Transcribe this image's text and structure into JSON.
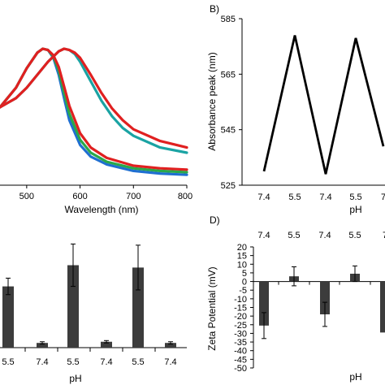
{
  "chart_data": [
    {
      "panel": "A",
      "panel_label": "",
      "type": "line",
      "xlabel": "Wavelength (nm)",
      "ylabel": "",
      "xlim": [
        450,
        800
      ],
      "ylim": [
        0,
        1.1
      ],
      "x_ticks": [
        "500",
        "600",
        "700",
        "800"
      ],
      "x_tick_values": [
        500,
        600,
        700,
        800
      ],
      "series": [
        {
          "color": "#1f6fd1",
          "x": [
            450,
            480,
            500,
            520,
            530,
            540,
            550,
            560,
            570,
            580,
            600,
            620,
            650,
            700,
            750,
            800
          ],
          "y": [
            0.55,
            0.7,
            0.85,
            0.97,
            1.0,
            0.99,
            0.93,
            0.8,
            0.62,
            0.45,
            0.26,
            0.17,
            0.11,
            0.06,
            0.04,
            0.03
          ]
        },
        {
          "color": "#2aa84a",
          "x": [
            450,
            480,
            500,
            520,
            530,
            540,
            550,
            560,
            570,
            580,
            600,
            620,
            650,
            700,
            750,
            800
          ],
          "y": [
            0.55,
            0.7,
            0.85,
            0.97,
            1.0,
            0.99,
            0.94,
            0.83,
            0.66,
            0.5,
            0.3,
            0.2,
            0.13,
            0.08,
            0.06,
            0.05
          ]
        },
        {
          "color": "#e02020",
          "x": [
            450,
            480,
            500,
            520,
            530,
            540,
            550,
            560,
            570,
            580,
            600,
            620,
            650,
            700,
            750,
            800
          ],
          "y": [
            0.55,
            0.7,
            0.85,
            0.97,
            1.0,
            0.99,
            0.95,
            0.86,
            0.71,
            0.56,
            0.35,
            0.24,
            0.16,
            0.1,
            0.08,
            0.07
          ]
        },
        {
          "color": "#1aa3a3",
          "x": [
            450,
            480,
            500,
            520,
            540,
            560,
            570,
            580,
            590,
            600,
            620,
            640,
            660,
            680,
            700,
            750,
            800
          ],
          "y": [
            0.55,
            0.62,
            0.7,
            0.8,
            0.9,
            0.98,
            1.0,
            0.99,
            0.96,
            0.9,
            0.75,
            0.6,
            0.48,
            0.39,
            0.33,
            0.24,
            0.2
          ]
        },
        {
          "color": "#e02020",
          "x": [
            450,
            480,
            500,
            520,
            540,
            560,
            570,
            580,
            590,
            600,
            620,
            640,
            660,
            680,
            700,
            750,
            800
          ],
          "y": [
            0.55,
            0.62,
            0.7,
            0.8,
            0.9,
            0.98,
            1.0,
            0.99,
            0.97,
            0.93,
            0.8,
            0.66,
            0.54,
            0.45,
            0.38,
            0.29,
            0.24
          ]
        }
      ]
    },
    {
      "panel": "B",
      "panel_label": "B)",
      "type": "line",
      "xlabel": "pH",
      "ylabel": "Absorbance peak (nm)",
      "ylim": [
        525,
        585
      ],
      "y_ticks": [
        "525",
        "545",
        "565",
        "585"
      ],
      "y_tick_values": [
        525,
        545,
        565,
        585
      ],
      "categories": [
        "7.4",
        "5.5",
        "7.4",
        "5.5",
        "7"
      ],
      "series": [
        {
          "color": "#000000",
          "values": [
            530,
            579,
            529,
            578,
            539
          ]
        }
      ]
    },
    {
      "panel": "C",
      "panel_label": "",
      "type": "bar",
      "xlabel": "pH",
      "ylabel": "",
      "ylim": [
        0,
        1.0
      ],
      "categories": [
        "5.5",
        "7.4",
        "5.5",
        "7.4",
        "5.5",
        "7.4"
      ],
      "values": [
        0.52,
        0.04,
        0.7,
        0.05,
        0.68,
        0.04
      ],
      "errors": [
        0.07,
        0.01,
        0.18,
        0.01,
        0.19,
        0.01
      ],
      "bar_color": "#3c3c3c"
    },
    {
      "panel": "D",
      "panel_label": "D)",
      "type": "bar",
      "xlabel": "pH",
      "ylabel": "Zeta Potential (mV)",
      "ylim": [
        -50,
        20
      ],
      "y_ticks": [
        "20",
        "15",
        "10",
        "5",
        "0",
        "-5",
        "-10",
        "-15",
        "-20",
        "-25",
        "-30",
        "-35",
        "-40",
        "-45",
        "-50"
      ],
      "y_tick_values": [
        20,
        15,
        10,
        5,
        0,
        -5,
        -10,
        -15,
        -20,
        -25,
        -30,
        -35,
        -40,
        -45,
        -50
      ],
      "categories": [
        "7.4",
        "5.5",
        "7.4",
        "5.5",
        "7"
      ],
      "values": [
        -25.5,
        3.0,
        -19.0,
        4.5,
        -29.5
      ],
      "errors": [
        7.5,
        5.5,
        7.0,
        4.5,
        0
      ],
      "bar_color": "#3c3c3c"
    }
  ]
}
